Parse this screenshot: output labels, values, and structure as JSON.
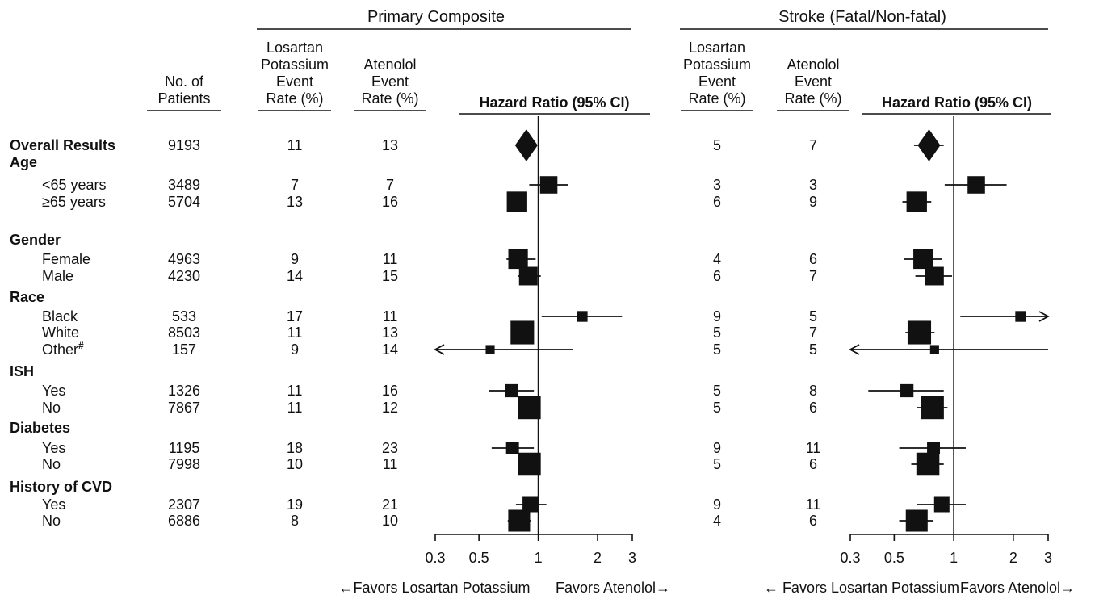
{
  "chart_data": {
    "type": "forest",
    "columns": {
      "patients": "No. of Patients",
      "los_rate": "Losartan Potassium Event Rate (%)",
      "ate_rate": "Atenolol Event Rate (%)",
      "hr": "Hazard Ratio (95% CI)"
    },
    "header_lines": {
      "patients": [
        "No. of",
        "Patients"
      ],
      "los_rate_pc": [
        "Losartan",
        "Potassium",
        "Event",
        "Rate (%)"
      ],
      "ate_rate_pc": [
        "Atenolol",
        "Event",
        "Rate (%)"
      ],
      "los_rate_st": [
        "Losartan",
        "Potassium",
        "Event",
        "Rate (%)"
      ],
      "ate_rate_st": [
        "Atenolol",
        "Event",
        "Rate (%)"
      ]
    },
    "panels": [
      {
        "title": "Primary Composite",
        "x_scale": "log",
        "xlim": [
          0.3,
          3
        ],
        "ticks": [
          0.3,
          0.5,
          1,
          2,
          3
        ],
        "tick_labels": [
          "0.3",
          "0.5",
          "1",
          "2",
          "3"
        ],
        "reference_line": 1,
        "favors_left": "←Favors Losartan Potassium",
        "favors_right": "Favors Atenolol→"
      },
      {
        "title": "Stroke (Fatal/Non-fatal)",
        "x_scale": "log",
        "xlim": [
          0.3,
          3
        ],
        "ticks": [
          0.3,
          0.5,
          1,
          2,
          3
        ],
        "tick_labels": [
          "0.3",
          "0.5",
          "1",
          "2",
          "3"
        ],
        "reference_line": 1,
        "favors_left": "← Favors Losartan Potassium",
        "favors_right": "Favors Atenolol→"
      }
    ],
    "rows": [
      {
        "label": "Overall Results",
        "bold": true,
        "patients": "9193",
        "pc": {
          "los": "11",
          "ate": "13",
          "hr": 0.87,
          "lo": 0.77,
          "hi": 0.98,
          "marker": "diamond"
        },
        "st": {
          "los": "5",
          "ate": "7",
          "hr": 0.75,
          "lo": 0.63,
          "hi": 0.89,
          "marker": "diamond"
        }
      },
      {
        "label": "Age",
        "bold": true,
        "header": true
      },
      {
        "label": "<65 years",
        "patients": "3489",
        "pc": {
          "los": "7",
          "ate": "7",
          "hr": 1.13,
          "lo": 0.9,
          "hi": 1.42,
          "marker": "square",
          "weight": 0.38
        },
        "st": {
          "los": "3",
          "ate": "3",
          "hr": 1.3,
          "lo": 0.9,
          "hi": 1.85,
          "marker": "square",
          "weight": 0.38
        }
      },
      {
        "label": "≥65 years",
        "patients": "5704",
        "pc": {
          "los": "13",
          "ate": "16",
          "hr": 0.78,
          "lo": 0.7,
          "hi": 0.87,
          "marker": "square",
          "weight": 0.62
        },
        "st": {
          "los": "6",
          "ate": "9",
          "hr": 0.65,
          "lo": 0.55,
          "hi": 0.77,
          "marker": "square",
          "weight": 0.62
        }
      },
      {
        "label": "Gender",
        "bold": true,
        "header": true
      },
      {
        "label": "Female",
        "patients": "4963",
        "pc": {
          "los": "9",
          "ate": "11",
          "hr": 0.79,
          "lo": 0.69,
          "hi": 0.97,
          "marker": "square",
          "weight": 0.54
        },
        "st": {
          "los": "4",
          "ate": "6",
          "hr": 0.7,
          "lo": 0.56,
          "hi": 0.87,
          "marker": "square",
          "weight": 0.54
        }
      },
      {
        "label": "Male",
        "patients": "4230",
        "pc": {
          "los": "14",
          "ate": "15",
          "hr": 0.89,
          "lo": 0.79,
          "hi": 1.03,
          "marker": "square",
          "weight": 0.46
        },
        "st": {
          "los": "6",
          "ate": "7",
          "hr": 0.8,
          "lo": 0.64,
          "hi": 0.98,
          "marker": "square",
          "weight": 0.46
        }
      },
      {
        "label": "Race",
        "bold": true,
        "header": true
      },
      {
        "label": "Black",
        "patients": "533",
        "pc": {
          "los": "17",
          "ate": "11",
          "hr": 1.67,
          "lo": 1.04,
          "hi": 2.66,
          "marker": "square",
          "weight": 0.06
        },
        "st": {
          "los": "9",
          "ate": "5",
          "hr": 2.18,
          "lo": 1.08,
          "hi": 4.4,
          "marker": "square",
          "weight": 0.06,
          "arrow_right": true
        }
      },
      {
        "label": "White",
        "patients": "8503",
        "pc": {
          "los": "11",
          "ate": "13",
          "hr": 0.83,
          "lo": 0.74,
          "hi": 0.93,
          "marker": "square",
          "weight": 0.92
        },
        "st": {
          "los": "5",
          "ate": "7",
          "hr": 0.67,
          "lo": 0.57,
          "hi": 0.8,
          "marker": "square",
          "weight": 0.92
        }
      },
      {
        "label": "Other",
        "sup": "#",
        "patients": "157",
        "pc": {
          "los": "9",
          "ate": "14",
          "hr": 0.57,
          "lo": 0.2,
          "hi": 1.5,
          "marker": "square",
          "weight": 0.02,
          "arrow_left": true
        },
        "st": {
          "los": "5",
          "ate": "5",
          "hr": 0.8,
          "lo": 0.2,
          "hi": 3.0,
          "marker": "square",
          "weight": 0.02,
          "arrow_left": true
        }
      },
      {
        "label": "ISH",
        "bold": true,
        "header": true
      },
      {
        "label": "Yes",
        "patients": "1326",
        "pc": {
          "los": "11",
          "ate": "16",
          "hr": 0.73,
          "lo": 0.56,
          "hi": 0.95,
          "marker": "square",
          "weight": 0.14
        },
        "st": {
          "los": "5",
          "ate": "8",
          "hr": 0.58,
          "lo": 0.37,
          "hi": 0.89,
          "marker": "square",
          "weight": 0.14
        }
      },
      {
        "label": "No",
        "patients": "7867",
        "pc": {
          "los": "11",
          "ate": "12",
          "hr": 0.9,
          "lo": 0.8,
          "hi": 1.0,
          "marker": "square",
          "weight": 0.86
        },
        "st": {
          "los": "5",
          "ate": "6",
          "hr": 0.78,
          "lo": 0.65,
          "hi": 0.93,
          "marker": "square",
          "weight": 0.86
        }
      },
      {
        "label": "Diabetes",
        "bold": true,
        "header": true
      },
      {
        "label": "Yes",
        "patients": "1195",
        "pc": {
          "los": "18",
          "ate": "23",
          "hr": 0.74,
          "lo": 0.58,
          "hi": 0.95,
          "marker": "square",
          "weight": 0.13
        },
        "st": {
          "los": "9",
          "ate": "11",
          "hr": 0.79,
          "lo": 0.53,
          "hi": 1.15,
          "marker": "square",
          "weight": 0.13
        }
      },
      {
        "label": "No",
        "patients": "7998",
        "pc": {
          "los": "10",
          "ate": "11",
          "hr": 0.9,
          "lo": 0.8,
          "hi": 1.01,
          "marker": "square",
          "weight": 0.87
        },
        "st": {
          "los": "5",
          "ate": "6",
          "hr": 0.74,
          "lo": 0.61,
          "hi": 0.89,
          "marker": "square",
          "weight": 0.87
        }
      },
      {
        "label": "History of CVD",
        "bold": true,
        "header": true
      },
      {
        "label": "Yes",
        "patients": "2307",
        "pc": {
          "los": "19",
          "ate": "21",
          "hr": 0.91,
          "lo": 0.77,
          "hi": 1.1,
          "marker": "square",
          "weight": 0.25
        },
        "st": {
          "los": "9",
          "ate": "11",
          "hr": 0.87,
          "lo": 0.65,
          "hi": 1.15,
          "marker": "square",
          "weight": 0.25
        }
      },
      {
        "label": "No",
        "patients": "6886",
        "pc": {
          "los": "8",
          "ate": "10",
          "hr": 0.8,
          "lo": 0.7,
          "hi": 0.92,
          "marker": "square",
          "weight": 0.75
        },
        "st": {
          "los": "4",
          "ate": "6",
          "hr": 0.65,
          "lo": 0.53,
          "hi": 0.79,
          "marker": "square",
          "weight": 0.75
        }
      }
    ]
  }
}
